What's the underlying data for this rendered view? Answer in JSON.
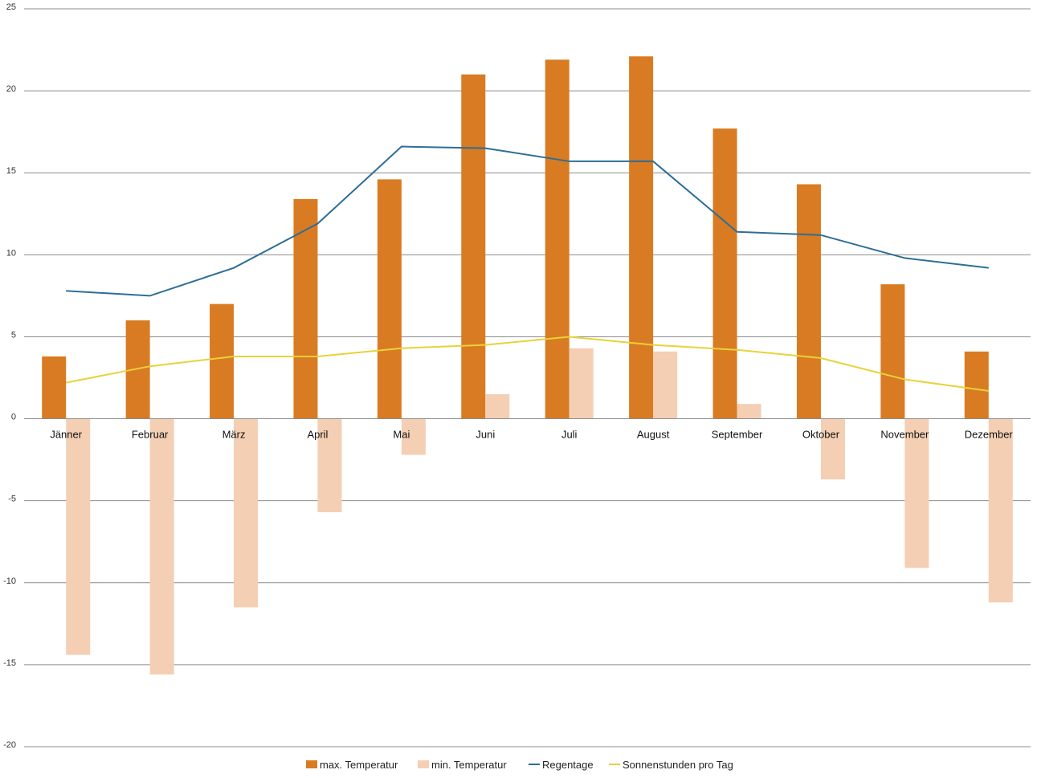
{
  "chart_data": {
    "type": "bar",
    "categories": [
      "Jänner",
      "Februar",
      "März",
      "April",
      "Mai",
      "Juni",
      "Juli",
      "August",
      "September",
      "Oktober",
      "November",
      "Dezember"
    ],
    "ylim": [
      -20,
      25
    ],
    "yticks": [
      25,
      20,
      15,
      10,
      5,
      0,
      -5,
      -10,
      -15,
      -20
    ],
    "grid": true,
    "legend_position": "bottom",
    "series": [
      {
        "name": "max. Temperatur",
        "type": "bar",
        "color": "#d97b22",
        "values": [
          3.8,
          6.0,
          7.0,
          13.4,
          14.6,
          21.0,
          21.9,
          22.1,
          17.7,
          14.3,
          8.2,
          4.1
        ]
      },
      {
        "name": "min. Temperatur",
        "type": "bar",
        "color": "#f4cfb4",
        "values": [
          -14.4,
          -15.6,
          -11.5,
          -5.7,
          -2.2,
          1.5,
          4.3,
          4.1,
          0.9,
          -3.7,
          -9.1,
          -11.2
        ]
      },
      {
        "name": "Regentage",
        "type": "line",
        "color": "#2e6e96",
        "values": [
          7.8,
          7.5,
          9.2,
          11.9,
          16.6,
          16.5,
          15.7,
          15.7,
          11.4,
          11.2,
          9.8,
          9.2
        ]
      },
      {
        "name": "Sonnenstunden pro Tag",
        "type": "line",
        "color": "#e8d23a",
        "values": [
          2.2,
          3.2,
          3.8,
          3.8,
          4.3,
          4.5,
          5.0,
          4.5,
          4.2,
          3.7,
          2.4,
          1.7
        ]
      }
    ]
  }
}
